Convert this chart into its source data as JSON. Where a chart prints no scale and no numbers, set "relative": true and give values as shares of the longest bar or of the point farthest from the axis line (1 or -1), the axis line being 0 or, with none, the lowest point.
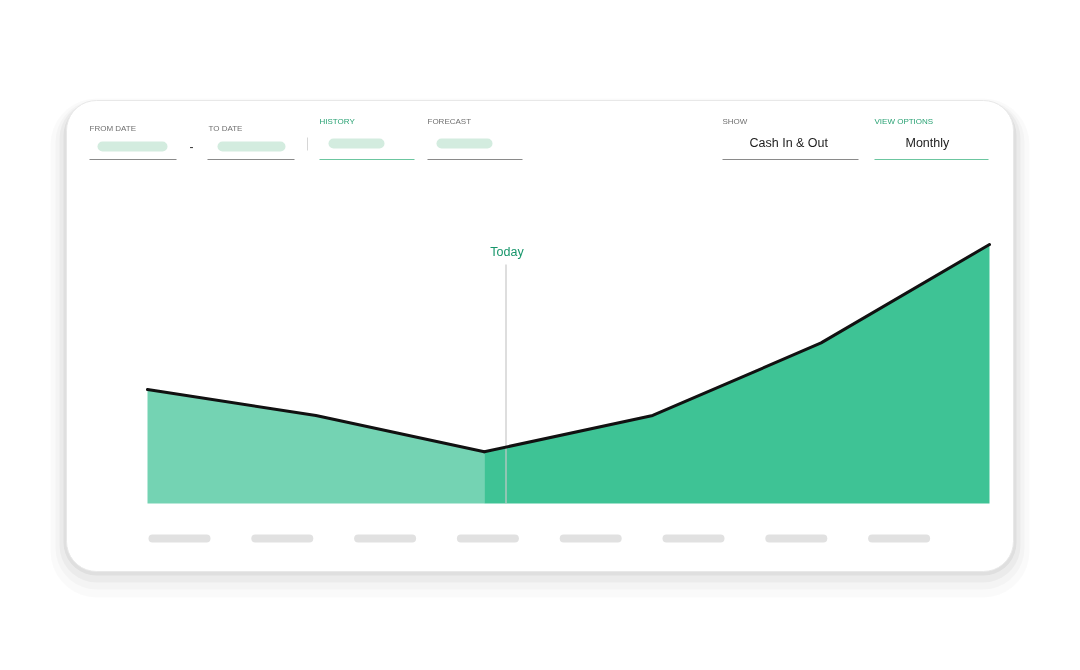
{
  "chart_data": {
    "type": "area",
    "categories": [
      null,
      null,
      null,
      null,
      null,
      null
    ],
    "series": [
      {
        "color": "#74d3b3",
        "values": [
          0.44,
          0.34,
          0.2,
          null,
          null,
          null
        ]
      },
      {
        "color": "#3ec395",
        "values": [
          null,
          null,
          0.2,
          0.34,
          0.62,
          1
        ]
      }
    ],
    "relative": true,
    "tick_labels": false,
    "annotations": [
      "FROM DATE",
      "-",
      "TO DATE",
      "HISTORY",
      "FORECAST",
      "SHOW",
      "Cash In & Out",
      "VIEW OPTIONS",
      "Monthly",
      "Today"
    ]
  }
}
